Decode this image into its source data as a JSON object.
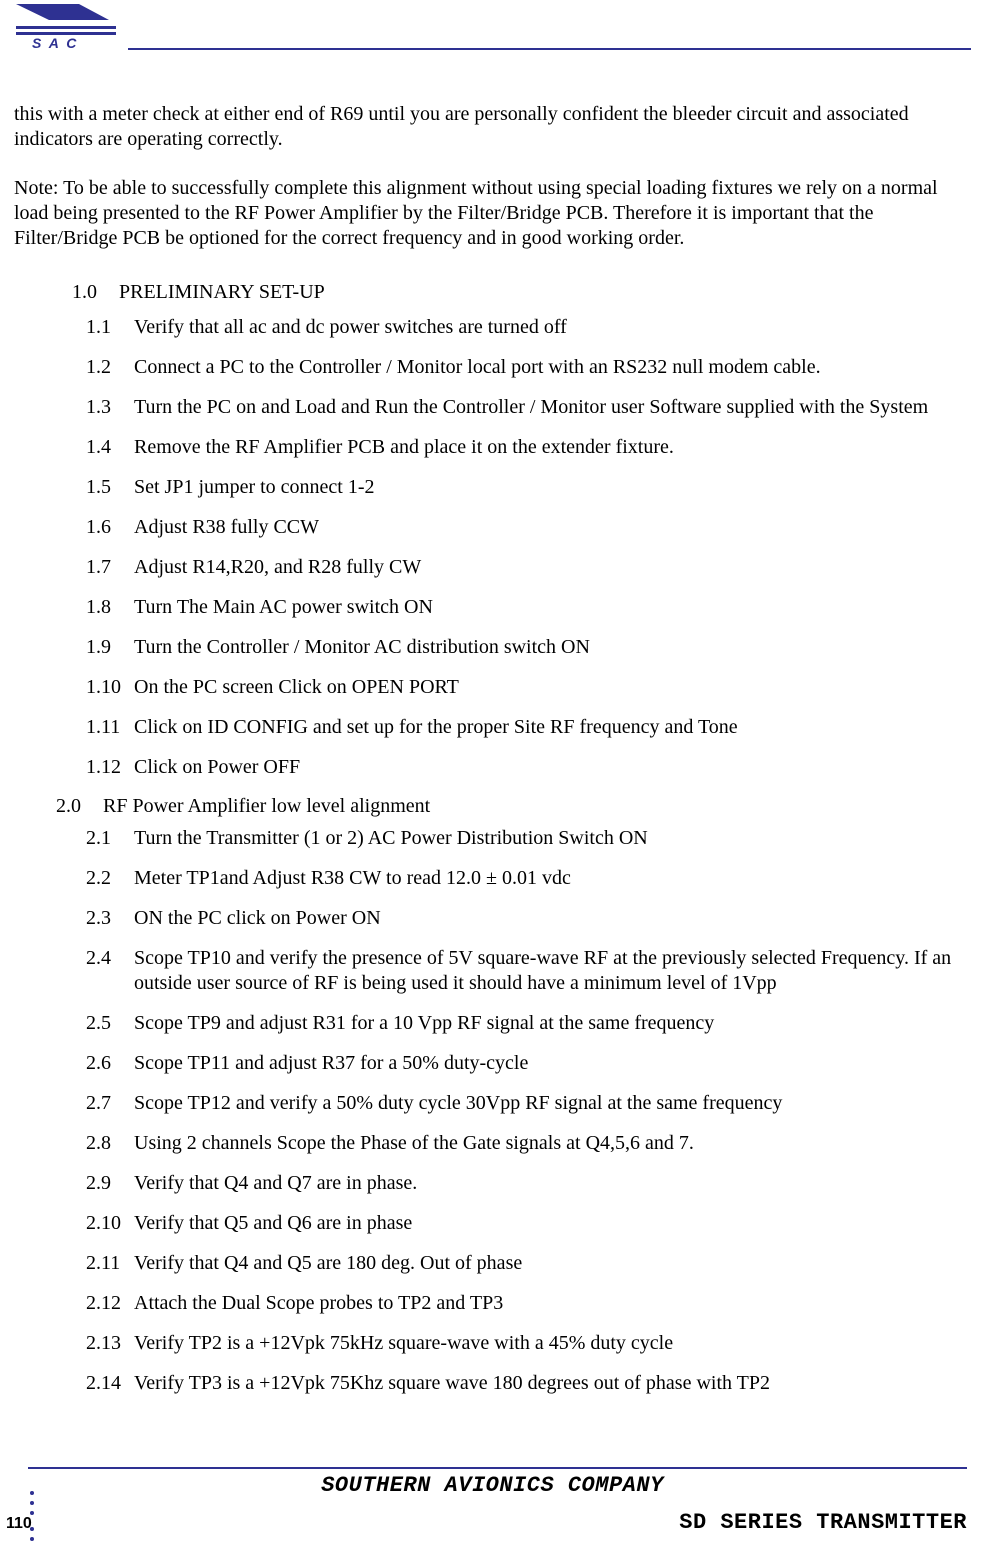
{
  "colors": {
    "accent": "#2e3192",
    "text": "#000000",
    "background": "#ffffff"
  },
  "typography": {
    "body_family": "Times New Roman",
    "body_size_pt": 15,
    "footer_family": "Courier New",
    "footer_size_pt": 16,
    "pagenum_family": "Arial"
  },
  "intro": {
    "p1": "this with a meter check at either end of R69 until you are personally confident the bleeder circuit and associated indicators are operating correctly.",
    "p2": "Note: To be able to successfully complete this alignment without using special loading fixtures we rely on a normal load being presented to the RF Power Amplifier by the Filter/Bridge PCB. Therefore it is important that the Filter/Bridge PCB be optioned for the correct frequency and in good working order."
  },
  "section1": {
    "num": "1.0",
    "title": "PRELIMINARY SET-UP",
    "items": [
      {
        "num": "1.1",
        "text": "Verify that all ac and dc power switches are turned off"
      },
      {
        "num": "1.2",
        "text": "Connect a PC to the Controller / Monitor local port with an RS232 null modem cable."
      },
      {
        "num": "1.3",
        "text": "Turn the PC on and Load and Run the Controller / Monitor user Software supplied with the System"
      },
      {
        "num": "1.4",
        "text": "Remove the RF Amplifier PCB and place it on the extender fixture."
      },
      {
        "num": "1.5",
        "text": "Set JP1 jumper to connect 1-2"
      },
      {
        "num": "1.6",
        "text": "Adjust  R38 fully CCW"
      },
      {
        "num": "1.7",
        "text": "Adjust R14,R20, and R28 fully CW"
      },
      {
        "num": "1.8",
        "text": "Turn The Main AC power switch ON"
      },
      {
        "num": "1.9",
        "text": "Turn the Controller / Monitor AC distribution switch ON"
      },
      {
        "num": "1.10",
        "text": "On the PC screen Click on OPEN PORT"
      },
      {
        "num": "1.11",
        "text": "Click on ID CONFIG and set up for the proper Site RF frequency and Tone"
      },
      {
        "num": "1.12",
        "text": "Click on Power OFF"
      }
    ]
  },
  "section2": {
    "num": "2.0",
    "title": "RF Power Amplifier low level alignment",
    "items": [
      {
        "num": "2.1",
        "text": "Turn the Transmitter (1 or 2) AC Power Distribution Switch ON"
      },
      {
        "num": "2.2",
        "text": "Meter TP1and Adjust R38 CW  to read 12.0 ± 0.01 vdc"
      },
      {
        "num": "2.3",
        "text": "ON the PC click on Power ON"
      },
      {
        "num": "2.4",
        "text": "Scope TP10 and verify the presence of 5V square-wave RF at the previously selected Frequency. If an outside user source of RF is being used it should  have a minimum level of 1Vpp"
      },
      {
        "num": "2.5",
        "text": "Scope TP9 and adjust R31 for a 10 Vpp RF signal at the same frequency"
      },
      {
        "num": "2.6",
        "text": "Scope TP11 and adjust R37 for a 50% duty-cycle"
      },
      {
        "num": "2.7",
        "text": "Scope TP12 and verify a 50% duty cycle 30Vpp RF signal at the same frequency"
      },
      {
        "num": "2.8",
        "text": "Using 2 channels Scope the Phase of the Gate signals at Q4,5,6 and 7."
      },
      {
        "num": "2.9",
        "text": "Verify that Q4 and Q7 are in phase."
      },
      {
        "num": "2.10",
        "text": "Verify that  Q5 and Q6 are in phase"
      },
      {
        "num": "2.11",
        "text": "Verify that Q4 and Q5 are 180 deg. Out of phase"
      },
      {
        "num": "2.12",
        "text": "Attach the Dual Scope probes to TP2 and TP3"
      },
      {
        "num": "2.13",
        "text": "Verify TP2 is a +12Vpk  75kHz square-wave with a  45% duty cycle"
      },
      {
        "num": "2.14",
        "text": "Verify TP3 is a +12Vpk  75Khz square wave 180 degrees out of phase with TP2"
      }
    ]
  },
  "footer": {
    "company": "SOUTHERN AVIONICS COMPANY",
    "page": "110",
    "series": "SD SERIES TRANSMITTER"
  }
}
